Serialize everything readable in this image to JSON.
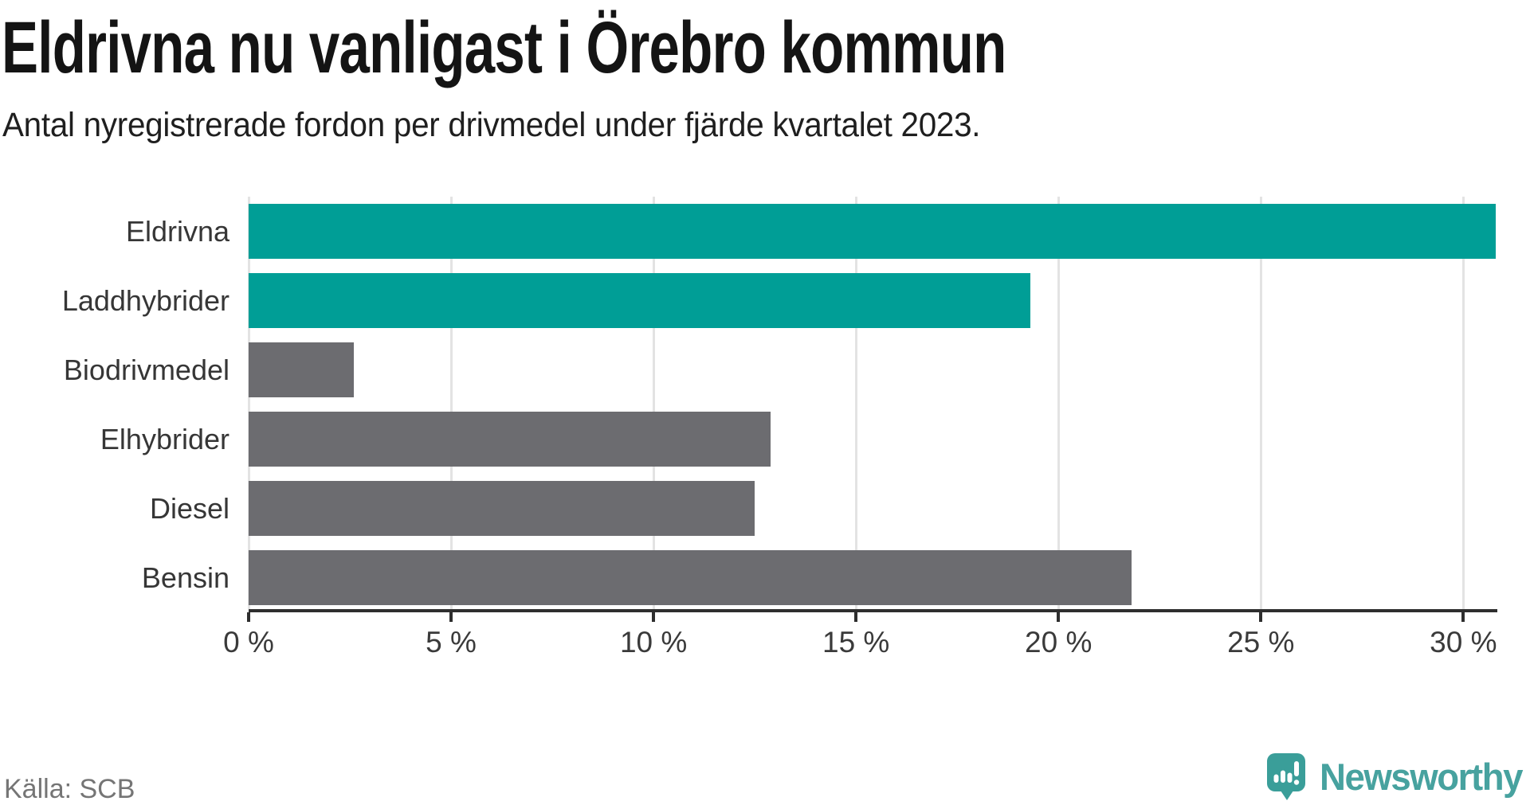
{
  "header": {
    "title": "Eldrivna nu vanligast i Örebro kommun",
    "subtitle": "Antal nyregistrerade fordon per drivmedel under fjärde kvartalet 2023."
  },
  "chart_data": {
    "type": "bar",
    "orientation": "horizontal",
    "title": "Eldrivna nu vanligast i Örebro kommun",
    "subtitle": "Antal nyregistrerade fordon per drivmedel under fjärde kvartalet 2023.",
    "categories": [
      "Eldrivna",
      "Laddhybrider",
      "Biodrivmedel",
      "Elhybrider",
      "Diesel",
      "Bensin"
    ],
    "values": [
      30.8,
      19.3,
      2.6,
      12.9,
      12.5,
      21.8
    ],
    "unit": "%",
    "bar_colors": [
      "#009E96",
      "#009E96",
      "#6C6C70",
      "#6C6C70",
      "#6C6C70",
      "#6C6C70"
    ],
    "xlabel": "",
    "ylabel": "",
    "xlim": [
      0,
      30.8
    ],
    "x_ticks": [
      0,
      5,
      10,
      15,
      20,
      25,
      30
    ],
    "x_tick_labels": [
      "0 %",
      "5 %",
      "10 %",
      "15 %",
      "20 %",
      "25 %",
      "30 %"
    ],
    "grid": true,
    "legend": false
  },
  "footer": {
    "source": "Källa: SCB",
    "brand": "Newsworthy"
  },
  "colors": {
    "accent_teal": "#009E96",
    "bar_gray": "#6C6C70",
    "gridline": "#E3E3E3",
    "axis": "#2E2E2E",
    "title_text": "#141414",
    "label_text": "#363636",
    "source_gray": "#757575",
    "brand_teal": "#47A29F",
    "logo_teal": "#3A9E99"
  },
  "icons": {
    "brand_logo": "newsworthy-speech-bubble-bar-chart-icon"
  }
}
